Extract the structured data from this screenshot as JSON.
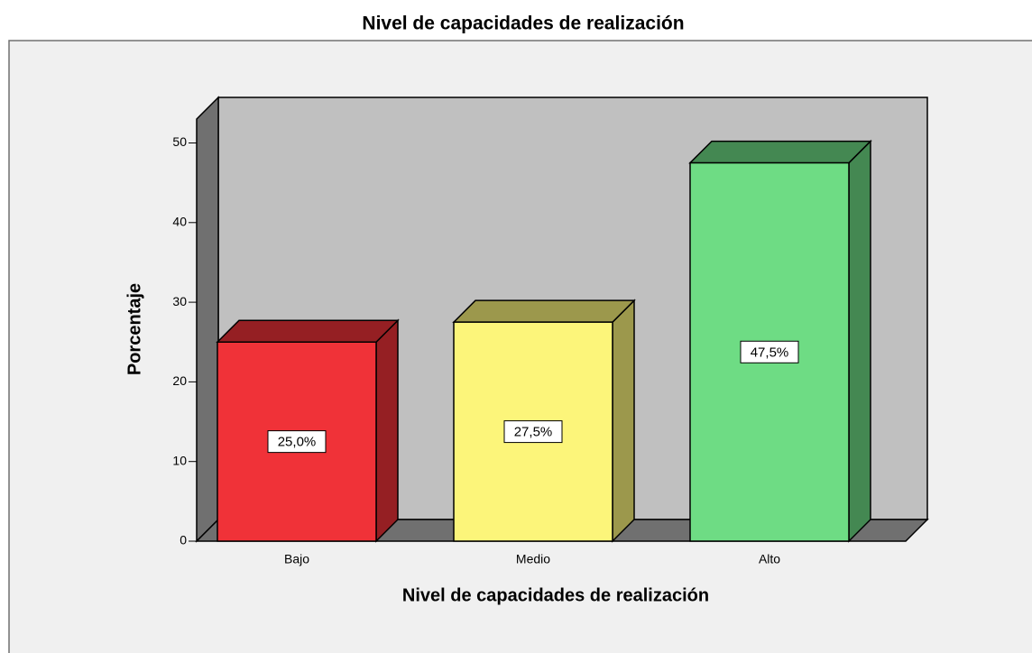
{
  "chart_data": {
    "type": "bar3d",
    "title": "Nivel de capacidades de realización",
    "x_label": "Nivel de capacidades de realización",
    "y_label": "Porcentaje",
    "categories": [
      "Bajo",
      "Medio",
      "Alto"
    ],
    "values": [
      25.0,
      27.5,
      47.5
    ],
    "value_labels": [
      "25,0%",
      "27,5%",
      "47,5%"
    ],
    "colors": [
      "#f03238",
      "#fcf57a",
      "#6edc84"
    ],
    "ylim": [
      0,
      53
    ],
    "yticks": [
      0,
      10,
      20,
      30,
      40,
      50
    ]
  }
}
